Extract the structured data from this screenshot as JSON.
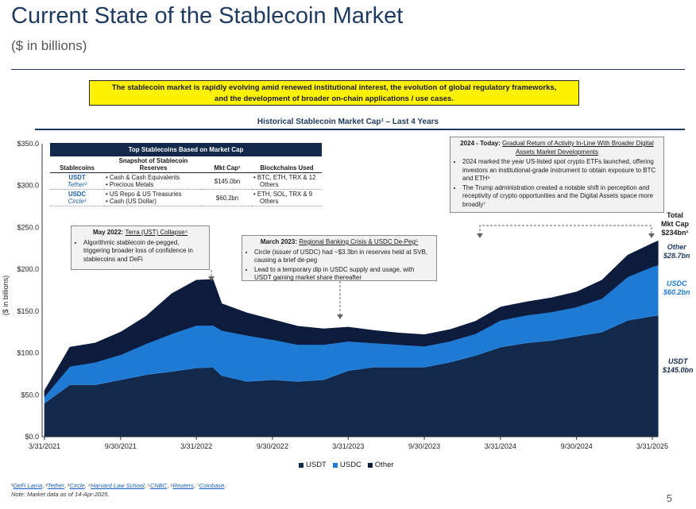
{
  "header": {
    "title": "Current State of the Stablecoin Market",
    "subtitle": "($ in billions)"
  },
  "banner": {
    "line1": "The stablecoin market is rapidly evolving amid renewed institutional interest, the evolution of global regulatory frameworks,",
    "line2": "and the development of broader on-chain applications / use cases."
  },
  "chart_title": "Historical Stablecoin Market Cap¹ – Last 4 Years",
  "table": {
    "title": "Top Stablecoins Based on Market Cap",
    "col_stablecoins": "Stablecoins",
    "col_snapshot": "Snapshot of Stablecoin Reserves",
    "col_mktcap": "Mkt Cap¹",
    "col_chains": "Blockchains Used",
    "rows": [
      {
        "ticker": "USDT",
        "issuer": "Tether²",
        "reserve1": "Cash & Cash Equivalents",
        "reserve2": "Precious Metals",
        "mktcap": "$145.0bn",
        "chains1": "BTC, ETH, TRX & 12",
        "chains2": "Others"
      },
      {
        "ticker": "USDC",
        "issuer": "Circle³",
        "reserve1": "US Repo & US Treasuries",
        "reserve2": "Cash (US Dollar)",
        "mktcap": "$60.2bn",
        "chains1": "ETH, SOL, TRX & 9",
        "chains2": "Others"
      }
    ]
  },
  "callouts": {
    "terra": {
      "date": "May 2022:",
      "title": "Terra (UST) Collapse⁴",
      "bullets": [
        "Algorithmic stablecoin de-pegged, triggering broader loss of confidence in stablecoins and DeFi"
      ]
    },
    "svb": {
      "date": "March 2023:",
      "title": "Regional Banking Crisis & USDC De-Peg⁵",
      "bullets": [
        "Circle (issuer of USDC) had ~$3.3bn in reserves held at SVB, causing a brief de-peg",
        "Lead to a temporary dip in USDC supply and usage, with USDT gaining market share thereafter"
      ]
    },
    "today": {
      "date": "2024 - Today:",
      "title": "Gradual Return of Activity In-Line With Broader Digital Assets Market Developments",
      "bullets": [
        "2024 marked the year US-listed spot crypto ETFs launched, offering investors an institutional-grade instrument to obtain exposure to BTC and ETH⁶",
        "The Trump administration created a notable shift in perception and receptivity of crypto opportunities and the Digital Assets space more broadly⁷"
      ]
    }
  },
  "right_labels": {
    "total_line1": "Total",
    "total_line2": "Mkt Cap",
    "total_value": "$234bn¹",
    "other_name": "Other",
    "other_value": "$28.7bn",
    "usdc_name": "USDC",
    "usdc_value": "$60.2bn",
    "usdt_name": "USDT",
    "usdt_value": "$145.0bn"
  },
  "colors": {
    "usdt": "#13294b",
    "usdc": "#1f7ad4",
    "other": "#0d1b3d",
    "label_blue": "#1f5fa8"
  },
  "chart_data": {
    "type": "area",
    "stacked": true,
    "ylabel": "($ in billions)",
    "ylim": [
      0,
      350
    ],
    "yticks": [
      "$0.0",
      "$50.0",
      "$100.0",
      "$150.0",
      "$200.0",
      "$250.0",
      "$300.0",
      "$350.0"
    ],
    "xticks": [
      "3/31/2021",
      "9/30/2021",
      "3/31/2022",
      "9/30/2022",
      "3/31/2023",
      "9/30/2023",
      "3/31/2024",
      "9/30/2024",
      "3/31/2025"
    ],
    "x": [
      "3/31/2021",
      "5/31/2021",
      "7/31/2021",
      "9/30/2021",
      "11/30/2021",
      "1/31/2022",
      "3/31/2022",
      "5/10/2022",
      "5/31/2022",
      "7/31/2022",
      "9/30/2022",
      "11/30/2022",
      "1/31/2023",
      "3/31/2023",
      "5/31/2023",
      "7/31/2023",
      "9/30/2023",
      "11/30/2023",
      "1/31/2024",
      "3/31/2024",
      "5/31/2024",
      "7/31/2024",
      "9/30/2024",
      "11/30/2024",
      "1/31/2025",
      "3/31/2025",
      "4/14/2025"
    ],
    "series": [
      {
        "name": "USDT",
        "values": [
          40,
          62,
          62,
          68,
          74,
          78,
          82,
          83,
          73,
          66,
          68,
          66,
          68,
          79,
          83,
          83,
          83,
          89,
          97,
          107,
          112,
          115,
          120,
          125,
          139,
          144,
          145
        ]
      },
      {
        "name": "USDC",
        "values": [
          8,
          22,
          27,
          30,
          37,
          45,
          51,
          50,
          54,
          55,
          48,
          44,
          42,
          35,
          29,
          27,
          25,
          25,
          26,
          32,
          33,
          34,
          35,
          40,
          52,
          59,
          60
        ]
      },
      {
        "name": "Other",
        "values": [
          7,
          23,
          23,
          27,
          33,
          48,
          54,
          55,
          32,
          27,
          24,
          22,
          19,
          17,
          15,
          14,
          14,
          14,
          15,
          16,
          16,
          17,
          18,
          22,
          26,
          28,
          29
        ]
      }
    ],
    "legend": [
      "USDT",
      "USDC",
      "Other"
    ],
    "legend_position": "bottom"
  },
  "footnotes": {
    "n1": "¹",
    "l1": "DeFi Lama",
    "n2": ", ²",
    "l2": "Tether",
    "n3": ", ³",
    "l3": "Circle",
    "n4": ", ⁴",
    "l4": "Harvard Law School",
    "n5": ", ⁵",
    "l5": "CNBC",
    "n6": ", ⁶",
    "l6": "Reuters",
    "n7": ", ⁷",
    "l7": "Coinbase",
    "end": ".",
    "note": "Note: Market data as of 14-Apr-2025."
  },
  "page_number": "5"
}
